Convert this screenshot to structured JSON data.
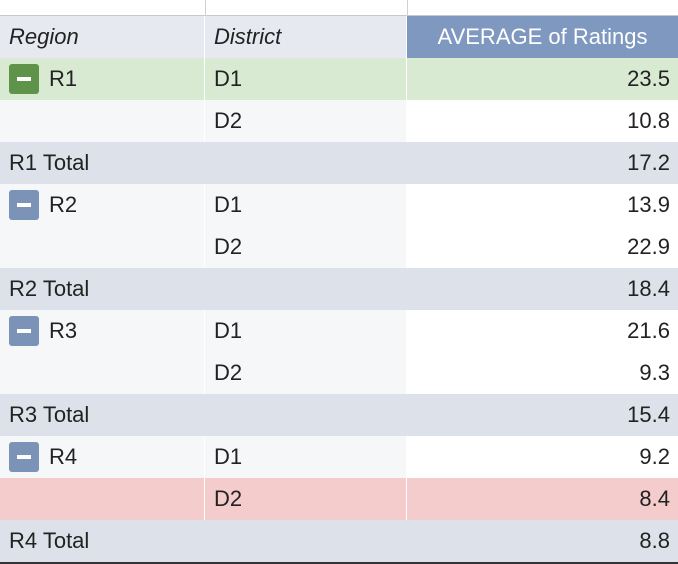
{
  "table": {
    "header": [
      "Region",
      "District",
      "AVERAGE of Ratings"
    ],
    "rows": [
      {
        "region": "R1",
        "district": "D1",
        "value": 23.5,
        "color": "#d9ead3",
        "toggle_color": "#5f9349"
      },
      {
        "district": "D2",
        "value": 10.8
      },
      {
        "total": "R1 Total",
        "value": 17.2
      },
      {
        "region": "R2",
        "district": "D1",
        "value": 13.9
      },
      {
        "district": "D2",
        "value": 22.9
      },
      {
        "total": "R2 Total",
        "value": 18.4
      },
      {
        "region": "R3",
        "district": "D1",
        "value": 21.6
      },
      {
        "district": "D2",
        "value": 9.3
      },
      {
        "total": "R3 Total",
        "value": 15.4
      },
      {
        "region": "R4",
        "district": "D1",
        "value": 9.2
      },
      {
        "district": "D2",
        "value": 8.4,
        "color": "#f4cccc"
      },
      {
        "total": "R4 Total",
        "value": 8.8
      }
    ]
  }
}
